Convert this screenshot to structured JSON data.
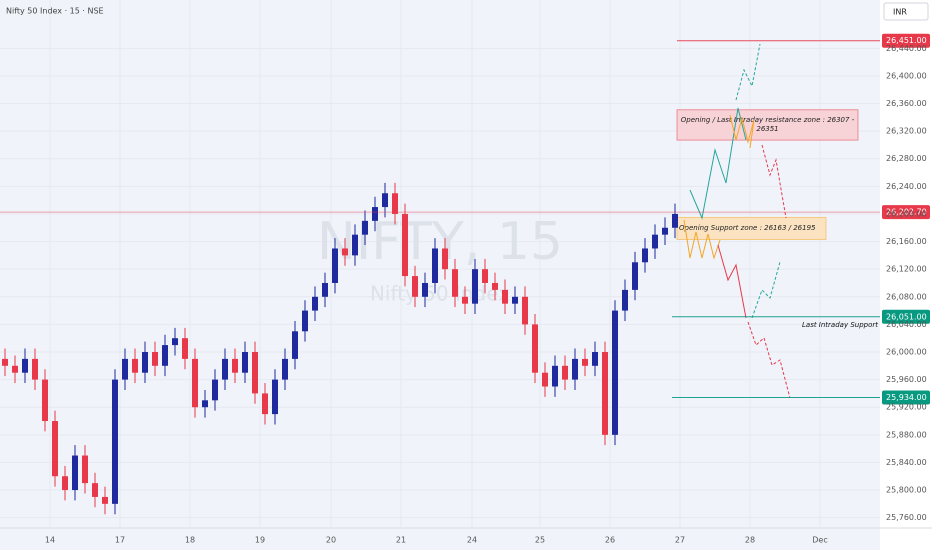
{
  "chart_data": {
    "type": "candlestick",
    "title": "Nifty 50 Index · 15 · NSE",
    "currency": "INR",
    "watermark": "NIFTY, 15",
    "watermark_sub": "Nifty 50 Index",
    "up_color": "#1e2a9e",
    "down_color": "#e8394a",
    "open": [
      25990,
      25980,
      25970,
      25990,
      25960,
      25900,
      25820,
      25800,
      25850,
      25810,
      25790,
      25780,
      25960,
      25990,
      25970,
      26000,
      25980,
      26010,
      26020,
      25990,
      25920,
      25930,
      25960,
      25990,
      25970,
      26000,
      25940,
      25910,
      25960,
      25990,
      26030,
      26060,
      26080,
      26100,
      26150,
      26140,
      26170,
      26190,
      26210,
      26230,
      26200,
      26110,
      26080,
      26100,
      26150,
      26120,
      26080,
      26070,
      26120,
      26100,
      26090,
      26070,
      26080,
      26040,
      25970,
      25950,
      25980,
      25960,
      25990,
      25980,
      26000,
      25880,
      26060,
      26090,
      26130,
      26150,
      26170,
      26180
    ],
    "high": [
      26005,
      25995,
      26005,
      26005,
      25975,
      25915,
      25835,
      25865,
      25865,
      25825,
      25805,
      25975,
      26005,
      26005,
      26015,
      26015,
      26025,
      26035,
      26035,
      26005,
      25945,
      25975,
      26005,
      26005,
      26015,
      26015,
      25955,
      25975,
      26005,
      26045,
      26075,
      26095,
      26115,
      26165,
      26165,
      26185,
      26205,
      26225,
      26245,
      26245,
      26215,
      26125,
      26115,
      26165,
      26165,
      26135,
      26095,
      26135,
      26135,
      26115,
      26105,
      26095,
      26095,
      26055,
      25985,
      25995,
      25995,
      26005,
      26005,
      26015,
      26015,
      26075,
      26105,
      26145,
      26165,
      26185,
      26195,
      26215
    ],
    "low": [
      25965,
      25955,
      25955,
      25945,
      25885,
      25805,
      25785,
      25785,
      25795,
      25775,
      25765,
      25765,
      25945,
      25955,
      25955,
      25965,
      25965,
      25995,
      25975,
      25905,
      25905,
      25915,
      25945,
      25955,
      25955,
      25925,
      25895,
      25895,
      25945,
      25975,
      26015,
      26045,
      26065,
      26085,
      26125,
      26125,
      26155,
      26175,
      26195,
      26185,
      26095,
      26065,
      26065,
      26085,
      26105,
      26065,
      26055,
      26055,
      26085,
      26075,
      26055,
      26055,
      26025,
      25955,
      25935,
      25935,
      25945,
      25945,
      25965,
      25965,
      25865,
      25865,
      26045,
      26075,
      26115,
      26135,
      26155,
      26165
    ],
    "close": [
      25980,
      25970,
      25990,
      25960,
      25900,
      25820,
      25800,
      25850,
      25810,
      25790,
      25780,
      25960,
      25990,
      25970,
      26000,
      25980,
      26010,
      26020,
      25990,
      25920,
      25930,
      25960,
      25990,
      25970,
      26000,
      25940,
      25910,
      25960,
      25990,
      26030,
      26060,
      26080,
      26100,
      26150,
      26140,
      26170,
      26190,
      26210,
      26230,
      26200,
      26110,
      26080,
      26100,
      26150,
      26120,
      26080,
      26070,
      26120,
      26100,
      26090,
      26070,
      26080,
      26040,
      25970,
      25950,
      25980,
      25960,
      25990,
      25980,
      26000,
      25880,
      26060,
      26090,
      26130,
      26150,
      26170,
      26180,
      26200
    ],
    "xlim": [
      -0.5,
      87.5
    ],
    "xticks": [
      {
        "value": 4.5,
        "label": "14"
      },
      {
        "value": 11.5,
        "label": "17"
      },
      {
        "value": 18.5,
        "label": "18"
      },
      {
        "value": 25.5,
        "label": "19"
      },
      {
        "value": 32.6,
        "label": "20"
      },
      {
        "value": 39.6,
        "label": "21"
      },
      {
        "value": 46.7,
        "label": "24"
      },
      {
        "value": 53.5,
        "label": "25"
      },
      {
        "value": 60.5,
        "label": "26"
      },
      {
        "value": 67.5,
        "label": "27"
      },
      {
        "value": 74.5,
        "label": "28"
      },
      {
        "value": 81.5,
        "label": "Dec"
      }
    ],
    "ylim": [
      25745,
      26510
    ],
    "yticks": [
      {
        "value": 25760,
        "label": "25,760.00"
      },
      {
        "value": 25800,
        "label": "25,800.00"
      },
      {
        "value": 25840,
        "label": "25,840.00"
      },
      {
        "value": 25880,
        "label": "25,880.00"
      },
      {
        "value": 25920,
        "label": "25,920.00"
      },
      {
        "value": 25960,
        "label": "25,960.00"
      },
      {
        "value": 26000,
        "label": "26,000.00"
      },
      {
        "value": 26040,
        "label": "26,040.00"
      },
      {
        "value": 26080,
        "label": "26,080.00"
      },
      {
        "value": 26120,
        "label": "26,120.00"
      },
      {
        "value": 26160,
        "label": "26,160.00"
      },
      {
        "value": 26200,
        "label": "26,200.00"
      },
      {
        "value": 26240,
        "label": "26,240.00"
      },
      {
        "value": 26280,
        "label": "26,280.00"
      },
      {
        "value": 26320,
        "label": "26,320.00"
      },
      {
        "value": 26360,
        "label": "26,360.00"
      },
      {
        "value": 26400,
        "label": "26,400.00"
      },
      {
        "value": 26440,
        "label": "26,440.00"
      }
    ],
    "grid": true,
    "levels": [
      {
        "value": 26451,
        "label": "26,451.00",
        "color": "#e8394a"
      },
      {
        "value": 26202.7,
        "label": "26,202.70",
        "color": "#e8394a"
      },
      {
        "value": 26051,
        "label": "26,051.00",
        "color": "#089981"
      },
      {
        "value": 25934,
        "label": "25,934.00",
        "color": "#089981"
      }
    ],
    "zones": [
      {
        "label": "Opening / Last Intraday resistance zone : 26307 - 26351",
        "low": 26307,
        "high": 26351,
        "color": "#f7d3d7",
        "border": "#e8394a"
      },
      {
        "label": "Opening Support zone : 26163 / 26195",
        "low": 26163,
        "high": 26195,
        "color": "#fbe3c2",
        "border": "#f5a623"
      }
    ],
    "annotations": [
      {
        "text": "Last Intraday Support",
        "value": 26051
      }
    ]
  }
}
